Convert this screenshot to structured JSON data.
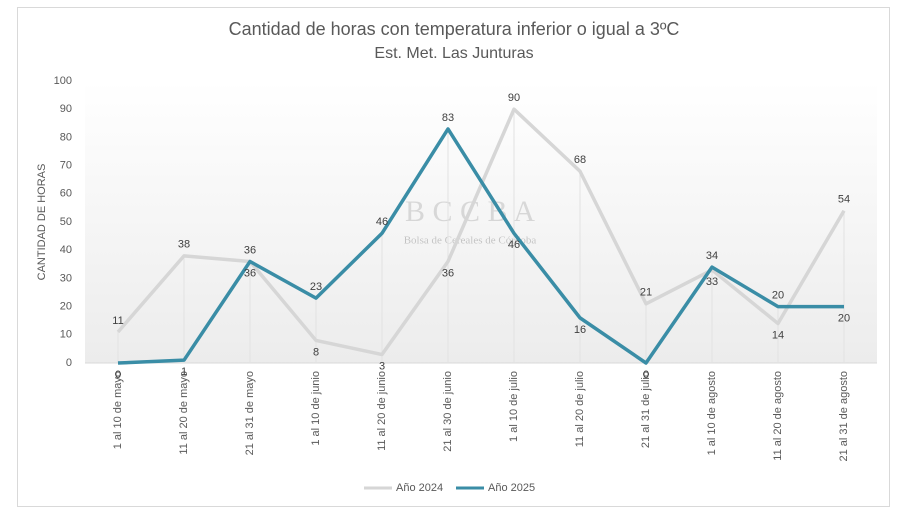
{
  "chart_data": {
    "type": "line",
    "title": "Cantidad de horas con temperatura inferior o igual a 3ºC",
    "subtitle": "Est. Met. Las Junturas",
    "y_label": "CANTIDAD DE HORAS",
    "watermark": {
      "logo": "B C C B A",
      "text": "Bolsa de Cereales de Córdoba"
    },
    "categories": [
      "1 al 10 de mayo",
      "11 al 20 de mayo",
      "21 al 31 de mayo",
      "1 al 10 de junio",
      "11 al 20 de junio",
      "21 al 30 de junio",
      "1 al 10 de julio",
      "11 al 20 de julio",
      "21 al 31 de julio",
      "1 al 10 de agosto",
      "11 al 20 de agosto",
      "21 al 31 de agosto"
    ],
    "series": [
      {
        "name": "Año 2024",
        "color": "#d6d6d6",
        "values": [
          11,
          38,
          36,
          8,
          3,
          36,
          90,
          68,
          21,
          33,
          14,
          54
        ]
      },
      {
        "name": "Año 2025",
        "color": "#3a8da6",
        "values": [
          0,
          1,
          36,
          23,
          46,
          83,
          46,
          16,
          0,
          34,
          20,
          20
        ]
      }
    ],
    "ylim": [
      0,
      100
    ],
    "yticks": [
      0,
      10,
      20,
      30,
      40,
      50,
      60,
      70,
      80,
      90,
      100
    ],
    "drop_lines": true,
    "legend": "bottom"
  }
}
